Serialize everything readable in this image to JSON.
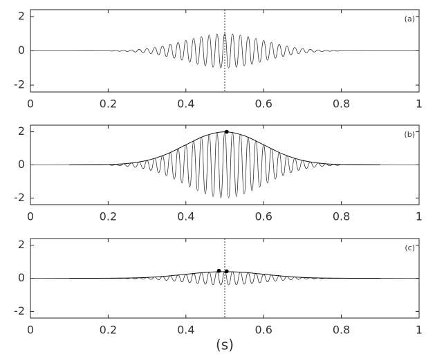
{
  "chart_data": [
    {
      "type": "line",
      "annotation": "(a)",
      "xlim": [
        0,
        1
      ],
      "ylim": [
        -2.4,
        2.4
      ],
      "xticks": [
        0,
        0.2,
        0.4,
        0.6,
        0.8,
        1
      ],
      "yticks": [
        -2,
        0,
        2
      ],
      "vline": 0.5,
      "series": [
        {
          "color": "#333333",
          "x": [
            0,
            0.2,
            0.21,
            0.22,
            0.23,
            0.24,
            0.25,
            0.26,
            0.27,
            0.28,
            0.29,
            0.3,
            0.31,
            0.32,
            0.33,
            0.34,
            0.35,
            0.36,
            0.37,
            0.38,
            0.39,
            0.4,
            0.41,
            0.42,
            0.43,
            0.44,
            0.45,
            0.46,
            0.47,
            0.48,
            0.49,
            0.5,
            0.51,
            0.52,
            0.53,
            0.54,
            0.55,
            0.56,
            0.57,
            0.58,
            0.59,
            0.6,
            0.61,
            0.62,
            0.63,
            0.64,
            0.65,
            0.66,
            0.67,
            0.68,
            0.69,
            0.7,
            0.71,
            0.72,
            0.73,
            0.74,
            0.75,
            0.76,
            0.77,
            0.78,
            0.79,
            0.8,
            1
          ],
          "values": [
            0,
            0.011,
            -0.015,
            0.02,
            -0.026,
            0.034,
            -0.044,
            0.056,
            -0.071,
            0.089,
            -0.11,
            0.135,
            -0.164,
            0.198,
            -0.236,
            0.278,
            -0.325,
            0.375,
            -0.43,
            0.487,
            -0.546,
            0.607,
            -0.667,
            0.726,
            -0.783,
            0.835,
            -0.882,
            0.923,
            -0.956,
            0.98,
            -0.995,
            1,
            -0.995,
            0.98,
            -0.956,
            0.923,
            -0.882,
            0.835,
            -0.783,
            0.726,
            -0.667,
            0.607,
            -0.546,
            0.487,
            -0.43,
            0.375,
            -0.325,
            0.278,
            -0.236,
            0.198,
            -0.164,
            0.135,
            -0.11,
            0.089,
            -0.071,
            0.056,
            -0.044,
            0.034,
            -0.026,
            0.02,
            -0.015,
            0.011,
            0
          ]
        }
      ]
    },
    {
      "type": "line",
      "annotation": "(b)",
      "xlim": [
        0,
        1
      ],
      "ylim": [
        -2.4,
        2.4
      ],
      "xticks": [
        0,
        0.2,
        0.4,
        0.6,
        0.8,
        1
      ],
      "yticks": [
        -2,
        0,
        2
      ],
      "series": [
        {
          "color": "#333333",
          "x": [
            0,
            0.2,
            0.21,
            0.22,
            0.23,
            0.24,
            0.25,
            0.26,
            0.27,
            0.28,
            0.29,
            0.3,
            0.31,
            0.32,
            0.33,
            0.34,
            0.35,
            0.36,
            0.37,
            0.38,
            0.39,
            0.4,
            0.41,
            0.42,
            0.43,
            0.44,
            0.45,
            0.46,
            0.47,
            0.48,
            0.49,
            0.5,
            0.51,
            0.52,
            0.53,
            0.54,
            0.55,
            0.56,
            0.57,
            0.58,
            0.59,
            0.6,
            0.61,
            0.62,
            0.63,
            0.64,
            0.65,
            0.66,
            0.67,
            0.68,
            0.69,
            0.7,
            0.71,
            0.72,
            0.73,
            0.74,
            0.75,
            0.76,
            0.77,
            0.78,
            0.79,
            0.8,
            1
          ],
          "values": [
            0,
            0.022,
            -0.03,
            0.04,
            -0.052,
            0.068,
            -0.088,
            0.112,
            -0.142,
            0.178,
            -0.22,
            0.27,
            -0.328,
            0.396,
            -0.472,
            0.556,
            -0.65,
            0.75,
            -0.86,
            0.974,
            -1.092,
            1.214,
            -1.334,
            1.452,
            -1.566,
            1.67,
            -1.764,
            1.846,
            -1.912,
            1.96,
            -1.99,
            2,
            -1.99,
            1.96,
            -1.912,
            1.846,
            -1.764,
            1.67,
            -1.566,
            1.452,
            -1.334,
            1.214,
            -1.092,
            0.974,
            -0.86,
            0.75,
            -0.65,
            0.556,
            -0.472,
            0.396,
            -0.328,
            0.27,
            -0.22,
            0.178,
            -0.142,
            0.112,
            -0.088,
            0.068,
            -0.052,
            0.04,
            -0.03,
            0.022,
            0
          ]
        },
        {
          "color": "#111111",
          "smooth": true,
          "x": [
            0.1,
            0.15,
            0.2,
            0.25,
            0.3,
            0.35,
            0.4,
            0.45,
            0.5,
            0.55,
            0.6,
            0.65,
            0.7,
            0.75,
            0.8,
            0.85,
            0.9
          ],
          "values": [
            0.001,
            0.004,
            0.022,
            0.088,
            0.27,
            0.65,
            1.214,
            1.764,
            2,
            1.764,
            1.214,
            0.65,
            0.27,
            0.088,
            0.022,
            0.004,
            0.001
          ]
        }
      ],
      "points": {
        "x": [
          0.505
        ],
        "values": [
          2
        ]
      }
    },
    {
      "type": "line",
      "annotation": "(c)",
      "xlabel": "(s)",
      "xlim": [
        0,
        1
      ],
      "ylim": [
        -2.4,
        2.4
      ],
      "xticks": [
        0,
        0.2,
        0.4,
        0.6,
        0.8,
        1
      ],
      "yticks": [
        -2,
        0,
        2
      ],
      "vline": 0.5,
      "series": [
        {
          "color": "#333333",
          "x": [
            0,
            0.2,
            0.21,
            0.22,
            0.23,
            0.24,
            0.25,
            0.26,
            0.27,
            0.28,
            0.29,
            0.3,
            0.31,
            0.32,
            0.33,
            0.34,
            0.35,
            0.36,
            0.37,
            0.38,
            0.39,
            0.4,
            0.41,
            0.42,
            0.43,
            0.44,
            0.45,
            0.46,
            0.47,
            0.48,
            0.49,
            0.5,
            0.51,
            0.52,
            0.53,
            0.54,
            0.55,
            0.56,
            0.57,
            0.58,
            0.59,
            0.6,
            0.61,
            0.62,
            0.63,
            0.64,
            0.65,
            0.66,
            0.67,
            0.68,
            0.69,
            0.7,
            0.71,
            0.72,
            0.73,
            0.74,
            0.75,
            0.76,
            0.77,
            0.78,
            0.79,
            0.8,
            1
          ],
          "values": [
            0,
            0.004,
            -0.006,
            0.008,
            -0.01,
            0.014,
            -0.018,
            0.022,
            -0.028,
            0.036,
            -0.044,
            0.054,
            -0.066,
            0.079,
            -0.094,
            0.111,
            -0.13,
            0.15,
            -0.172,
            0.195,
            -0.218,
            0.243,
            -0.267,
            0.29,
            -0.313,
            0.334,
            -0.353,
            0.369,
            -0.382,
            0.392,
            -0.398,
            0.4,
            -0.398,
            0.392,
            -0.382,
            0.369,
            -0.353,
            0.334,
            -0.313,
            0.29,
            -0.267,
            0.243,
            -0.218,
            0.195,
            -0.172,
            0.15,
            -0.13,
            0.111,
            -0.094,
            0.079,
            -0.066,
            0.054,
            -0.044,
            0.036,
            -0.028,
            0.022,
            -0.018,
            0.014,
            -0.01,
            0.008,
            -0.006,
            0.004,
            0
          ]
        },
        {
          "color": "#111111",
          "smooth": true,
          "x": [
            0.1,
            0.15,
            0.2,
            0.25,
            0.3,
            0.35,
            0.4,
            0.45,
            0.5,
            0.55,
            0.6,
            0.65,
            0.7,
            0.75,
            0.8,
            0.85,
            0.9
          ],
          "values": [
            0,
            0.001,
            0.004,
            0.018,
            0.054,
            0.13,
            0.243,
            0.353,
            0.4,
            0.353,
            0.243,
            0.13,
            0.054,
            0.018,
            0.004,
            0.001,
            0
          ]
        }
      ],
      "points": {
        "x": [
          0.485,
          0.505
        ],
        "values": [
          0.45,
          0.42
        ]
      }
    }
  ]
}
